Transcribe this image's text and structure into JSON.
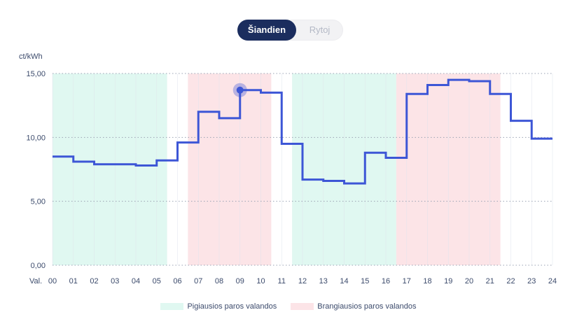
{
  "toggle": {
    "today_label": "Šiandien",
    "tomorrow_label": "Rytoj"
  },
  "chart_data": {
    "type": "line",
    "step": "post",
    "unit_label": "ct/kWh",
    "xlabel": "Val.",
    "x_ticks": [
      "00",
      "01",
      "02",
      "03",
      "04",
      "05",
      "06",
      "07",
      "08",
      "09",
      "10",
      "11",
      "12",
      "13",
      "14",
      "15",
      "16",
      "17",
      "18",
      "19",
      "20",
      "21",
      "22",
      "23",
      "24"
    ],
    "y_ticks": [
      "0,00",
      "5,00",
      "10,00",
      "15,00"
    ],
    "ylim": [
      0,
      15
    ],
    "xlim": [
      0,
      24
    ],
    "grid": true,
    "line_color": "#3d56d6",
    "series": [
      {
        "hours": [
          0,
          1,
          2,
          3,
          4,
          5,
          6,
          7,
          8,
          9,
          10,
          11,
          12,
          13,
          14,
          15,
          16,
          17,
          18,
          19,
          20,
          21,
          22,
          23
        ],
        "values": [
          8.5,
          8.1,
          7.9,
          7.9,
          7.8,
          8.2,
          9.6,
          12.0,
          11.5,
          13.7,
          13.5,
          9.5,
          6.7,
          6.6,
          6.4,
          8.8,
          8.4,
          13.4,
          14.1,
          14.5,
          14.4,
          13.4,
          11.3,
          9.9
        ]
      }
    ],
    "highlight_point": {
      "x": 9.0,
      "y": 13.7
    },
    "zones": [
      {
        "kind": "cheap",
        "start": 0,
        "end": 5.5,
        "color": "#e0f8f1"
      },
      {
        "kind": "expensive",
        "start": 6.5,
        "end": 10.5,
        "color": "#fce4e7"
      },
      {
        "kind": "cheap",
        "start": 11.5,
        "end": 16.5,
        "color": "#e0f8f1"
      },
      {
        "kind": "expensive",
        "start": 16.5,
        "end": 21.5,
        "color": "#fce4e7"
      }
    ]
  },
  "legend": [
    {
      "label": "Pigiausios paros valandos",
      "color": "#e0f8f1"
    },
    {
      "label": "Brangiausios paros valandos",
      "color": "#fce4e7"
    }
  ]
}
